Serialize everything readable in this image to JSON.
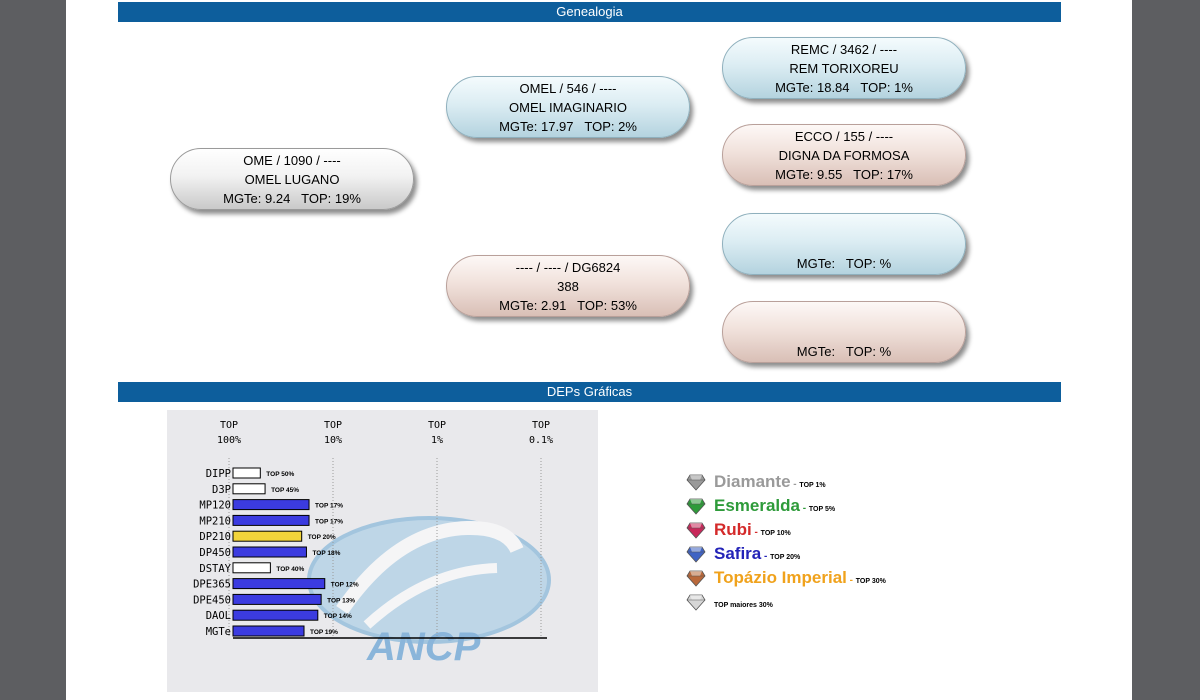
{
  "sections": {
    "genealogy_title": "Genealogia",
    "deps_title": "DEPs Gráficas"
  },
  "pedigree": {
    "sire": {
      "line1": "OME / 1090 / ----",
      "line2": "OMEL LUGANO",
      "mgte": "MGTe: 9.24",
      "top": "TOP: 19%"
    },
    "sire_sire": {
      "line1": "OMEL / 546 / ----",
      "line2": "OMEL IMAGINARIO",
      "mgte": "MGTe: 17.97",
      "top": "TOP: 2%"
    },
    "sire_dam": {
      "line1": "---- / ---- / DG6824",
      "line2": "388",
      "mgte": "MGTe: 2.91",
      "top": "TOP: 53%"
    },
    "ss_sire": {
      "line1": "REMC / 3462 / ----",
      "line2": "REM TORIXOREU",
      "mgte": "MGTe: 18.84",
      "top": "TOP: 1%"
    },
    "ss_dam": {
      "line1": "ECCO / 155 / ----",
      "line2": "DIGNA DA FORMOSA",
      "mgte": "MGTe: 9.55",
      "top": "TOP: 17%"
    },
    "sd_sire": {
      "line1": "",
      "line2": "",
      "mgte": "MGTe:",
      "top": "TOP: %"
    },
    "sd_dam": {
      "line1": "",
      "line2": "",
      "mgte": "MGTe:",
      "top": "TOP: %"
    }
  },
  "chart_data": {
    "type": "bar",
    "orientation": "horizontal",
    "scale_headers": [
      {
        "top": "TOP",
        "val": "100%"
      },
      {
        "top": "TOP",
        "val": "10%"
      },
      {
        "top": "TOP",
        "val": "1%"
      },
      {
        "top": "TOP",
        "val": "0.1%"
      }
    ],
    "categories": [
      "DIPP",
      "D3P",
      "MP120",
      "MP210",
      "DP210",
      "DP450",
      "DSTAY",
      "DPE365",
      "DPE450",
      "DAOL",
      "MGTe"
    ],
    "values": [
      50,
      45,
      17,
      17,
      20,
      18,
      40,
      12,
      13,
      14,
      19
    ],
    "value_labels": [
      "TOP 50%",
      "TOP 45%",
      "TOP 17%",
      "TOP 17%",
      "TOP 20%",
      "TOP 18%",
      "TOP 40%",
      "TOP 12%",
      "TOP 13%",
      "TOP 14%",
      "TOP 19%"
    ],
    "scale": "log (TOP % 100 to 0.1)",
    "grid": "vertical dotted lines",
    "colors": {
      "top_weaker_than_30": "#ffffff",
      "safira": "#3b3be0",
      "topazio": "#f2d43a"
    },
    "watermark_text": "ANCP"
  },
  "legend": [
    {
      "name": "Diamante",
      "sep": " - ",
      "top": "TOP 1%",
      "color": "#9a9a9a",
      "gem_color": "#9a9a9a",
      "icon": "diamond-gem-icon"
    },
    {
      "name": "Esmeralda",
      "sep": " - ",
      "top": "TOP 5%",
      "color": "#2e9b3a",
      "gem_color": "#2e9b3a",
      "icon": "emerald-gem-icon"
    },
    {
      "name": "Rubi",
      "sep": " - ",
      "top": "TOP 10%",
      "color": "#d42a2a",
      "gem_color": "#c8285a",
      "icon": "ruby-gem-icon"
    },
    {
      "name": "Safira",
      "sep": " - ",
      "top": "TOP 20%",
      "color": "#2424b8",
      "gem_color": "#3f63c4",
      "icon": "sapphire-gem-icon"
    },
    {
      "name": "Topázio Imperial",
      "sep": " - ",
      "top": "TOP 30%",
      "color": "#f0a21c",
      "gem_color": "#b9683a",
      "icon": "topaz-gem-icon"
    },
    {
      "name": "",
      "sep": "",
      "top": "TOP maiores 30%",
      "color": "#000000",
      "gem_color": "#d6d6d6",
      "icon": "white-gem-icon"
    }
  ]
}
